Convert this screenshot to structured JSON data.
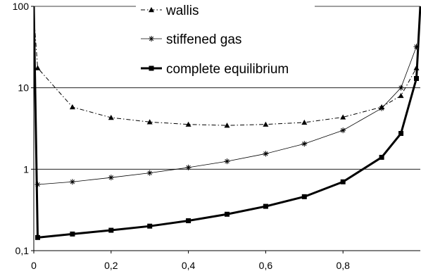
{
  "chart_data": {
    "type": "line",
    "title": "",
    "xlabel": "",
    "ylabel": "",
    "x_scale": "linear",
    "y_scale": "log",
    "xlim": [
      0,
      1
    ],
    "ylim": [
      0.1,
      100
    ],
    "x_ticks": [
      0,
      0.2,
      0.4,
      0.6,
      0.8
    ],
    "x_tick_labels": [
      "0",
      "0,2",
      "0,4",
      "0,6",
      "0,8"
    ],
    "y_ticks": [
      0.1,
      1,
      10,
      100
    ],
    "y_tick_labels": [
      "0,1",
      "1",
      "10",
      "100"
    ],
    "grid": "horizontal",
    "legend_position": "top-right",
    "series": [
      {
        "name": "wallis",
        "style": "dash-dot",
        "marker": "triangle",
        "color": "#000000",
        "x": [
          0,
          0.01,
          0.1,
          0.2,
          0.3,
          0.4,
          0.5,
          0.6,
          0.7,
          0.8,
          0.9,
          0.95,
          0.99,
          1
        ],
        "y": [
          80,
          17.5,
          5.8,
          4.3,
          3.8,
          3.55,
          3.45,
          3.55,
          3.75,
          4.35,
          5.8,
          8,
          17.5,
          80
        ]
      },
      {
        "name": "stiffened gas",
        "style": "solid-thin",
        "marker": "asterisk",
        "color": "#000000",
        "x": [
          0.01,
          0.1,
          0.2,
          0.3,
          0.4,
          0.5,
          0.6,
          0.7,
          0.8,
          0.9,
          0.95,
          0.99
        ],
        "y": [
          0.65,
          0.7,
          0.79,
          0.9,
          1.05,
          1.25,
          1.55,
          2.05,
          3,
          5.6,
          10,
          32
        ]
      },
      {
        "name": "complete equilibrium",
        "style": "solid-thick",
        "marker": "square",
        "color": "#000000",
        "x": [
          0,
          0.01,
          0.1,
          0.2,
          0.3,
          0.4,
          0.5,
          0.6,
          0.7,
          0.8,
          0.9,
          0.95,
          0.99,
          1
        ],
        "y": [
          100,
          0.145,
          0.16,
          0.178,
          0.2,
          0.233,
          0.28,
          0.35,
          0.46,
          0.7,
          1.4,
          2.75,
          13,
          100
        ]
      }
    ]
  }
}
